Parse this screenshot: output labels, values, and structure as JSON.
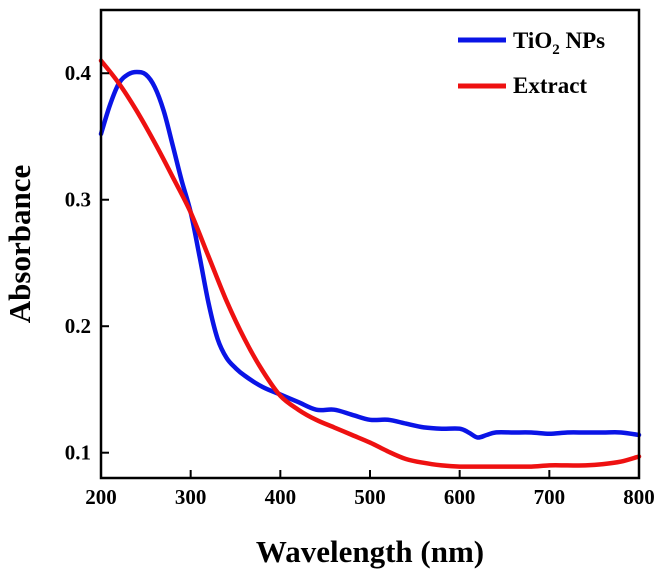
{
  "chart_data": {
    "type": "line",
    "title": "",
    "xlabel": "Wavelength (nm)",
    "ylabel": "Absorbance",
    "xlim": [
      200,
      800
    ],
    "ylim": [
      0.08,
      0.45
    ],
    "xticks": [
      200,
      300,
      400,
      500,
      600,
      700,
      800
    ],
    "xtick_labels": [
      "200",
      "300",
      "400",
      "500",
      "600",
      "700",
      "800"
    ],
    "yticks": [
      0.1,
      0.2,
      0.3,
      0.4
    ],
    "ytick_labels": [
      "0.1",
      "0.2",
      "0.3",
      "0.4"
    ],
    "grid": false,
    "legend_position": "top-right",
    "series": [
      {
        "name": "TiO2 NPs",
        "legend_main": "TiO",
        "legend_sub": "2",
        "legend_rest": " NPs",
        "color": "#0a14e6",
        "x": [
          200,
          210,
          220,
          230,
          240,
          250,
          260,
          270,
          280,
          290,
          300,
          310,
          320,
          330,
          340,
          350,
          360,
          380,
          400,
          420,
          440,
          460,
          480,
          500,
          520,
          540,
          560,
          580,
          600,
          610,
          620,
          630,
          640,
          660,
          680,
          700,
          720,
          740,
          760,
          780,
          800
        ],
        "y": [
          0.352,
          0.375,
          0.392,
          0.399,
          0.401,
          0.399,
          0.389,
          0.37,
          0.343,
          0.315,
          0.29,
          0.255,
          0.218,
          0.19,
          0.175,
          0.167,
          0.161,
          0.152,
          0.146,
          0.14,
          0.134,
          0.134,
          0.13,
          0.126,
          0.126,
          0.123,
          0.12,
          0.119,
          0.119,
          0.116,
          0.112,
          0.114,
          0.116,
          0.116,
          0.116,
          0.115,
          0.116,
          0.116,
          0.116,
          0.116,
          0.114
        ]
      },
      {
        "name": "Extract",
        "legend_main": "Extract",
        "legend_sub": "",
        "legend_rest": "",
        "color": "#ee1111",
        "x": [
          200,
          220,
          240,
          260,
          280,
          300,
          320,
          340,
          360,
          380,
          400,
          420,
          440,
          460,
          480,
          500,
          520,
          540,
          560,
          580,
          600,
          620,
          640,
          660,
          680,
          700,
          720,
          740,
          760,
          780,
          800
        ],
        "y": [
          0.41,
          0.392,
          0.37,
          0.345,
          0.318,
          0.29,
          0.255,
          0.22,
          0.19,
          0.165,
          0.145,
          0.134,
          0.126,
          0.12,
          0.114,
          0.108,
          0.101,
          0.095,
          0.092,
          0.09,
          0.089,
          0.089,
          0.089,
          0.089,
          0.089,
          0.09,
          0.09,
          0.09,
          0.091,
          0.093,
          0.097
        ]
      }
    ]
  }
}
